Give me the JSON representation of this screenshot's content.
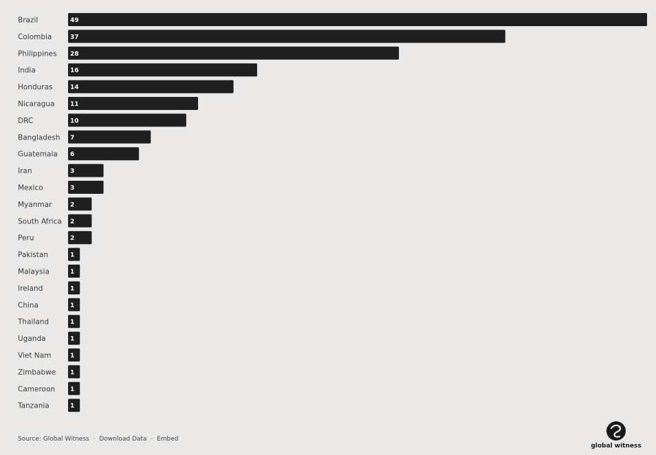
{
  "chart_data": {
    "type": "bar",
    "orientation": "horizontal",
    "categories": [
      "Brazil",
      "Colombia",
      "Philippines",
      "India",
      "Honduras",
      "Nicaragua",
      "DRC",
      "Bangladesh",
      "Guatemala",
      "Iran",
      "Mexico",
      "Myanmar",
      "South Africa",
      "Peru",
      "Pakistan",
      "Malaysia",
      "Ireland",
      "China",
      "Thailand",
      "Uganda",
      "Viet Nam",
      "Zimbabwe",
      "Cameroon",
      "Tanzania"
    ],
    "values": [
      49,
      37,
      28,
      16,
      14,
      11,
      10,
      7,
      6,
      3,
      3,
      2,
      2,
      2,
      1,
      1,
      1,
      1,
      1,
      1,
      1,
      1,
      1,
      1
    ],
    "xlim": [
      0,
      49
    ],
    "data_labels": "inside-bar-start",
    "grid": false,
    "legend": "none",
    "bar_color": "#1f1f1f",
    "background_color": "#eae9e7"
  },
  "footer": {
    "source": "Source: Global Witness",
    "separator": "·",
    "download": "Download Data",
    "embed": "Embed"
  },
  "logo": {
    "text": "global witness",
    "icon": "global-witness-logo-icon"
  }
}
